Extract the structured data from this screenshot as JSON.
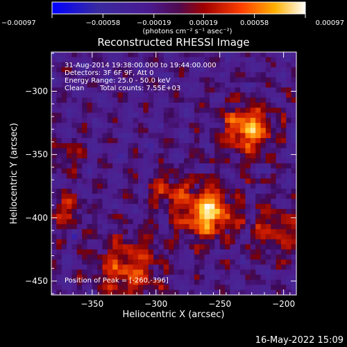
{
  "chart_data": {
    "type": "heatmap",
    "title": "Reconstructed RHESSI Image",
    "xlabel": "Heliocentric X (arcsec)",
    "ylabel": "Heliocentric Y (arcsec)",
    "xlim": [
      -382,
      -190
    ],
    "ylim": [
      -461,
      -269
    ],
    "x_ticks": [
      -350,
      -300,
      -250,
      -200
    ],
    "x_tick_labels": [
      "−350",
      "−300",
      "−250",
      "−200"
    ],
    "y_ticks": [
      -300,
      -350,
      -400,
      -450
    ],
    "y_tick_labels": [
      "−300",
      "−350",
      "−400",
      "−450"
    ],
    "colorbar": {
      "range": [
        -0.00097,
        0.00097
      ],
      "ticks": [
        -0.00097,
        -0.00058,
        -0.00019,
        0.00019,
        0.00058,
        0.00097
      ],
      "tick_labels": [
        "−0.00097",
        "−0.00058",
        "−0.00019",
        "0.00019",
        "0.00058",
        "0.00097"
      ],
      "units_line": "(photons cm⁻² s⁻¹ asec⁻²)"
    },
    "sources": [
      {
        "x": -260,
        "y": -396,
        "peak": 1.0,
        "width": 14
      },
      {
        "x": -228,
        "y": -330,
        "peak": 0.85,
        "width": 14
      },
      {
        "x": -322,
        "y": -440,
        "peak": 0.6,
        "width": 18
      },
      {
        "x": -372,
        "y": -393,
        "peak": 0.45,
        "width": 9
      },
      {
        "x": -370,
        "y": -350,
        "peak": 0.3,
        "width": 9
      },
      {
        "x": -205,
        "y": -410,
        "peak": 0.4,
        "width": 15
      },
      {
        "x": -290,
        "y": -378,
        "peak": 0.45,
        "width": 10
      }
    ],
    "annotations": {
      "time_range": "31-Aug-2014 19:38:00.000 to 19:44:00.000",
      "detectors": "Detectors: 3F 6F 9F, Att 0",
      "energy_range": "Energy Range: 25.0 - 50.0 keV",
      "clean": "Clean",
      "total_counts": "Total counts: 7.55E+03",
      "peak_position": "Position of Peak = [-260,-396]"
    }
  },
  "footer_date": "16-May-2022 15:09",
  "colors": {
    "background": "#000000",
    "foreground": "#ffffff",
    "colormap": [
      "#0000ff",
      "#4a1e9a",
      "#3f2a8e",
      "#5a1080",
      "#8a0000",
      "#d02000",
      "#ff7a00",
      "#ffd040",
      "#ffffff"
    ]
  }
}
